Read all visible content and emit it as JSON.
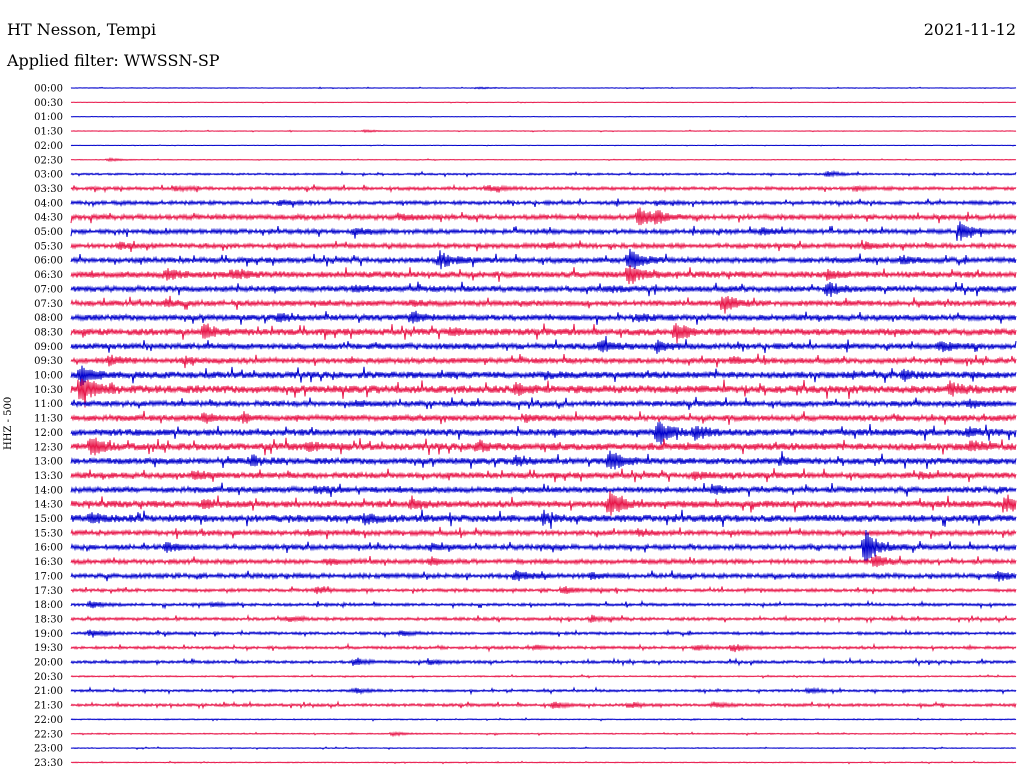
{
  "header": {
    "station": "HT Nesson, Tempi",
    "date": "2021-11-12",
    "filter": "Applied filter: WWSSN-SP"
  },
  "colors": {
    "trace_a": "#0000cc",
    "trace_b": "#e8174a"
  },
  "chart_data": {
    "type": "line",
    "title": "HT Nesson, Tempi",
    "subtitle": "Applied filter: WWSSN-SP",
    "date": "2021-11-12",
    "ylabel": "HHZ - 500",
    "xlabel": "",
    "grid": false,
    "legend": "none",
    "row_interval_minutes": 30,
    "colors_alternate": [
      "#0000cc",
      "#e8174a"
    ],
    "rows": [
      {
        "label": "00:00",
        "activity": 0.03,
        "events": [
          [
            0.43,
            0.1
          ]
        ]
      },
      {
        "label": "00:30",
        "activity": 0.02,
        "events": []
      },
      {
        "label": "01:00",
        "activity": 0.02,
        "events": []
      },
      {
        "label": "01:30",
        "activity": 0.03,
        "events": [
          [
            0.31,
            0.12
          ]
        ]
      },
      {
        "label": "02:00",
        "activity": 0.02,
        "events": []
      },
      {
        "label": "02:30",
        "activity": 0.03,
        "events": [
          [
            0.04,
            0.15
          ]
        ]
      },
      {
        "label": "03:00",
        "activity": 0.08,
        "events": [
          [
            0.8,
            0.3
          ]
        ]
      },
      {
        "label": "03:30",
        "activity": 0.14,
        "events": [
          [
            0.11,
            0.25
          ],
          [
            0.44,
            0.3
          ],
          [
            0.83,
            0.25
          ]
        ]
      },
      {
        "label": "04:00",
        "activity": 0.16,
        "events": [
          [
            0.22,
            0.25
          ],
          [
            0.62,
            0.2
          ]
        ]
      },
      {
        "label": "04:30",
        "activity": 0.22,
        "events": [
          [
            0.6,
            1.0
          ],
          [
            0.62,
            0.6
          ],
          [
            0.35,
            0.3
          ]
        ]
      },
      {
        "label": "05:00",
        "activity": 0.2,
        "events": [
          [
            0.94,
            1.0
          ],
          [
            0.73,
            0.4
          ],
          [
            0.3,
            0.35
          ]
        ]
      },
      {
        "label": "05:30",
        "activity": 0.2,
        "events": [
          [
            0.05,
            0.35
          ],
          [
            0.5,
            0.3
          ],
          [
            0.84,
            0.35
          ]
        ]
      },
      {
        "label": "06:00",
        "activity": 0.24,
        "events": [
          [
            0.39,
            0.85
          ],
          [
            0.59,
            1.2
          ],
          [
            0.88,
            0.35
          ]
        ]
      },
      {
        "label": "06:30",
        "activity": 0.28,
        "events": [
          [
            0.1,
            0.6
          ],
          [
            0.17,
            0.45
          ],
          [
            0.59,
            1.0
          ],
          [
            0.8,
            0.4
          ]
        ]
      },
      {
        "label": "07:00",
        "activity": 0.26,
        "events": [
          [
            0.8,
            0.8
          ],
          [
            0.57,
            0.3
          ],
          [
            0.3,
            0.3
          ]
        ]
      },
      {
        "label": "07:30",
        "activity": 0.24,
        "events": [
          [
            0.69,
            0.95
          ],
          [
            0.36,
            0.3
          ],
          [
            0.1,
            0.3
          ]
        ]
      },
      {
        "label": "08:00",
        "activity": 0.26,
        "events": [
          [
            0.36,
            0.65
          ],
          [
            0.22,
            0.4
          ],
          [
            0.6,
            0.35
          ]
        ]
      },
      {
        "label": "08:30",
        "activity": 0.3,
        "events": [
          [
            0.14,
            0.85
          ],
          [
            0.64,
            1.0
          ],
          [
            0.4,
            0.3
          ]
        ]
      },
      {
        "label": "09:00",
        "activity": 0.26,
        "events": [
          [
            0.56,
            0.7
          ],
          [
            0.62,
            0.5
          ],
          [
            0.92,
            0.5
          ]
        ]
      },
      {
        "label": "09:30",
        "activity": 0.24,
        "events": [
          [
            0.04,
            0.55
          ],
          [
            0.12,
            0.35
          ],
          [
            0.7,
            0.3
          ]
        ]
      },
      {
        "label": "10:00",
        "activity": 0.3,
        "events": [
          [
            0.01,
            1.0
          ],
          [
            0.88,
            0.4
          ],
          [
            0.5,
            0.3
          ]
        ]
      },
      {
        "label": "10:30",
        "activity": 0.35,
        "events": [
          [
            0.01,
            1.7
          ],
          [
            0.47,
            0.5
          ],
          [
            0.93,
            0.6
          ]
        ]
      },
      {
        "label": "11:00",
        "activity": 0.24,
        "events": [
          [
            0.95,
            0.45
          ],
          [
            0.3,
            0.3
          ]
        ]
      },
      {
        "label": "11:30",
        "activity": 0.26,
        "events": [
          [
            0.14,
            0.45
          ],
          [
            0.18,
            0.35
          ],
          [
            0.48,
            0.35
          ]
        ]
      },
      {
        "label": "12:00",
        "activity": 0.3,
        "events": [
          [
            0.62,
            1.35
          ],
          [
            0.66,
            0.6
          ],
          [
            0.95,
            0.4
          ]
        ]
      },
      {
        "label": "12:30",
        "activity": 0.32,
        "events": [
          [
            0.02,
            1.0
          ],
          [
            0.25,
            0.45
          ],
          [
            0.43,
            0.45
          ],
          [
            0.95,
            0.4
          ]
        ]
      },
      {
        "label": "13:00",
        "activity": 0.28,
        "events": [
          [
            0.57,
            1.1
          ],
          [
            0.47,
            0.45
          ],
          [
            0.19,
            0.4
          ],
          [
            0.75,
            0.3
          ]
        ]
      },
      {
        "label": "13:30",
        "activity": 0.26,
        "events": [
          [
            0.13,
            0.45
          ],
          [
            0.66,
            0.4
          ],
          [
            0.9,
            0.3
          ]
        ]
      },
      {
        "label": "14:00",
        "activity": 0.26,
        "events": [
          [
            0.68,
            0.45
          ],
          [
            0.26,
            0.35
          ]
        ]
      },
      {
        "label": "14:30",
        "activity": 0.3,
        "events": [
          [
            0.57,
            1.3
          ],
          [
            0.36,
            0.6
          ],
          [
            0.99,
            0.8
          ],
          [
            0.14,
            0.4
          ]
        ]
      },
      {
        "label": "15:00",
        "activity": 0.32,
        "events": [
          [
            0.31,
            0.5
          ],
          [
            0.5,
            0.4
          ],
          [
            0.02,
            0.45
          ]
        ]
      },
      {
        "label": "15:30",
        "activity": 0.22,
        "events": [
          [
            0.25,
            0.3
          ],
          [
            0.6,
            0.3
          ]
        ]
      },
      {
        "label": "16:00",
        "activity": 0.22,
        "events": [
          [
            0.84,
            1.9
          ],
          [
            0.1,
            0.5
          ],
          [
            0.38,
            0.3
          ]
        ]
      },
      {
        "label": "16:30",
        "activity": 0.2,
        "events": [
          [
            0.85,
            0.8
          ],
          [
            0.38,
            0.4
          ],
          [
            0.27,
            0.3
          ]
        ]
      },
      {
        "label": "17:00",
        "activity": 0.2,
        "events": [
          [
            0.47,
            0.6
          ],
          [
            0.55,
            0.35
          ],
          [
            0.98,
            0.45
          ]
        ]
      },
      {
        "label": "17:30",
        "activity": 0.14,
        "events": [
          [
            0.52,
            0.45
          ],
          [
            0.26,
            0.3
          ]
        ]
      },
      {
        "label": "18:00",
        "activity": 0.12,
        "events": [
          [
            0.02,
            0.35
          ],
          [
            0.15,
            0.25
          ]
        ]
      },
      {
        "label": "18:30",
        "activity": 0.13,
        "events": [
          [
            0.55,
            0.35
          ],
          [
            0.23,
            0.3
          ]
        ]
      },
      {
        "label": "19:00",
        "activity": 0.12,
        "events": [
          [
            0.02,
            0.4
          ],
          [
            0.35,
            0.25
          ]
        ]
      },
      {
        "label": "19:30",
        "activity": 0.12,
        "events": [
          [
            0.7,
            0.4
          ],
          [
            0.66,
            0.3
          ],
          [
            0.49,
            0.25
          ]
        ]
      },
      {
        "label": "20:00",
        "activity": 0.12,
        "events": [
          [
            0.3,
            0.35
          ],
          [
            0.38,
            0.25
          ]
        ]
      },
      {
        "label": "20:30",
        "activity": 0.06,
        "events": []
      },
      {
        "label": "21:00",
        "activity": 0.1,
        "events": [
          [
            0.3,
            0.25
          ],
          [
            0.78,
            0.25
          ]
        ]
      },
      {
        "label": "21:30",
        "activity": 0.12,
        "events": [
          [
            0.51,
            0.35
          ],
          [
            0.59,
            0.3
          ],
          [
            0.68,
            0.3
          ]
        ]
      },
      {
        "label": "22:00",
        "activity": 0.05,
        "events": []
      },
      {
        "label": "22:30",
        "activity": 0.05,
        "events": [
          [
            0.34,
            0.2
          ]
        ]
      },
      {
        "label": "23:00",
        "activity": 0.04,
        "events": []
      },
      {
        "label": "23:30",
        "activity": 0.04,
        "events": []
      }
    ]
  }
}
